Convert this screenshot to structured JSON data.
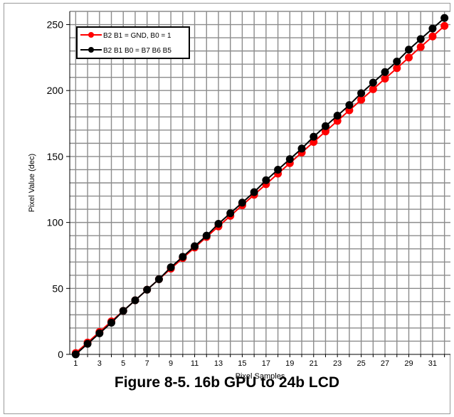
{
  "chart_data": {
    "type": "line",
    "caption": "Figure 8-5. 16b GPU to 24b LCD",
    "xlabel": "Pixel Samples",
    "ylabel": "Pixel Value (dec)",
    "xlim": [
      0.5,
      32.5
    ],
    "ylim": [
      0,
      260
    ],
    "x_tick_labels": [
      1,
      3,
      5,
      7,
      9,
      11,
      13,
      15,
      17,
      19,
      21,
      23,
      25,
      27,
      29,
      31
    ],
    "y_tick_labels": [
      0,
      50,
      100,
      150,
      200,
      250
    ],
    "grid": true,
    "legend_placement": "top-left",
    "x": [
      1,
      2,
      3,
      4,
      5,
      6,
      7,
      8,
      9,
      10,
      11,
      12,
      13,
      14,
      15,
      16,
      17,
      18,
      19,
      20,
      21,
      22,
      23,
      24,
      25,
      26,
      27,
      28,
      29,
      30,
      31,
      32
    ],
    "series": [
      {
        "name": "B2 B1 = GND, B0 = 1",
        "color": "#ff0000",
        "values": [
          1,
          9,
          17,
          25,
          33,
          41,
          49,
          57,
          65,
          73,
          81,
          89,
          97,
          105,
          113,
          121,
          129,
          137,
          145,
          153,
          161,
          169,
          177,
          185,
          193,
          201,
          209,
          217,
          225,
          233,
          241,
          249
        ]
      },
      {
        "name": "B2 B1 B0 = B7 B6 B5",
        "color": "#000000",
        "values": [
          0,
          8,
          16,
          24,
          33,
          41,
          49,
          57,
          66,
          74,
          82,
          90,
          99,
          107,
          115,
          123,
          132,
          140,
          148,
          156,
          165,
          173,
          181,
          189,
          198,
          206,
          214,
          222,
          231,
          239,
          247,
          255
        ]
      }
    ]
  }
}
